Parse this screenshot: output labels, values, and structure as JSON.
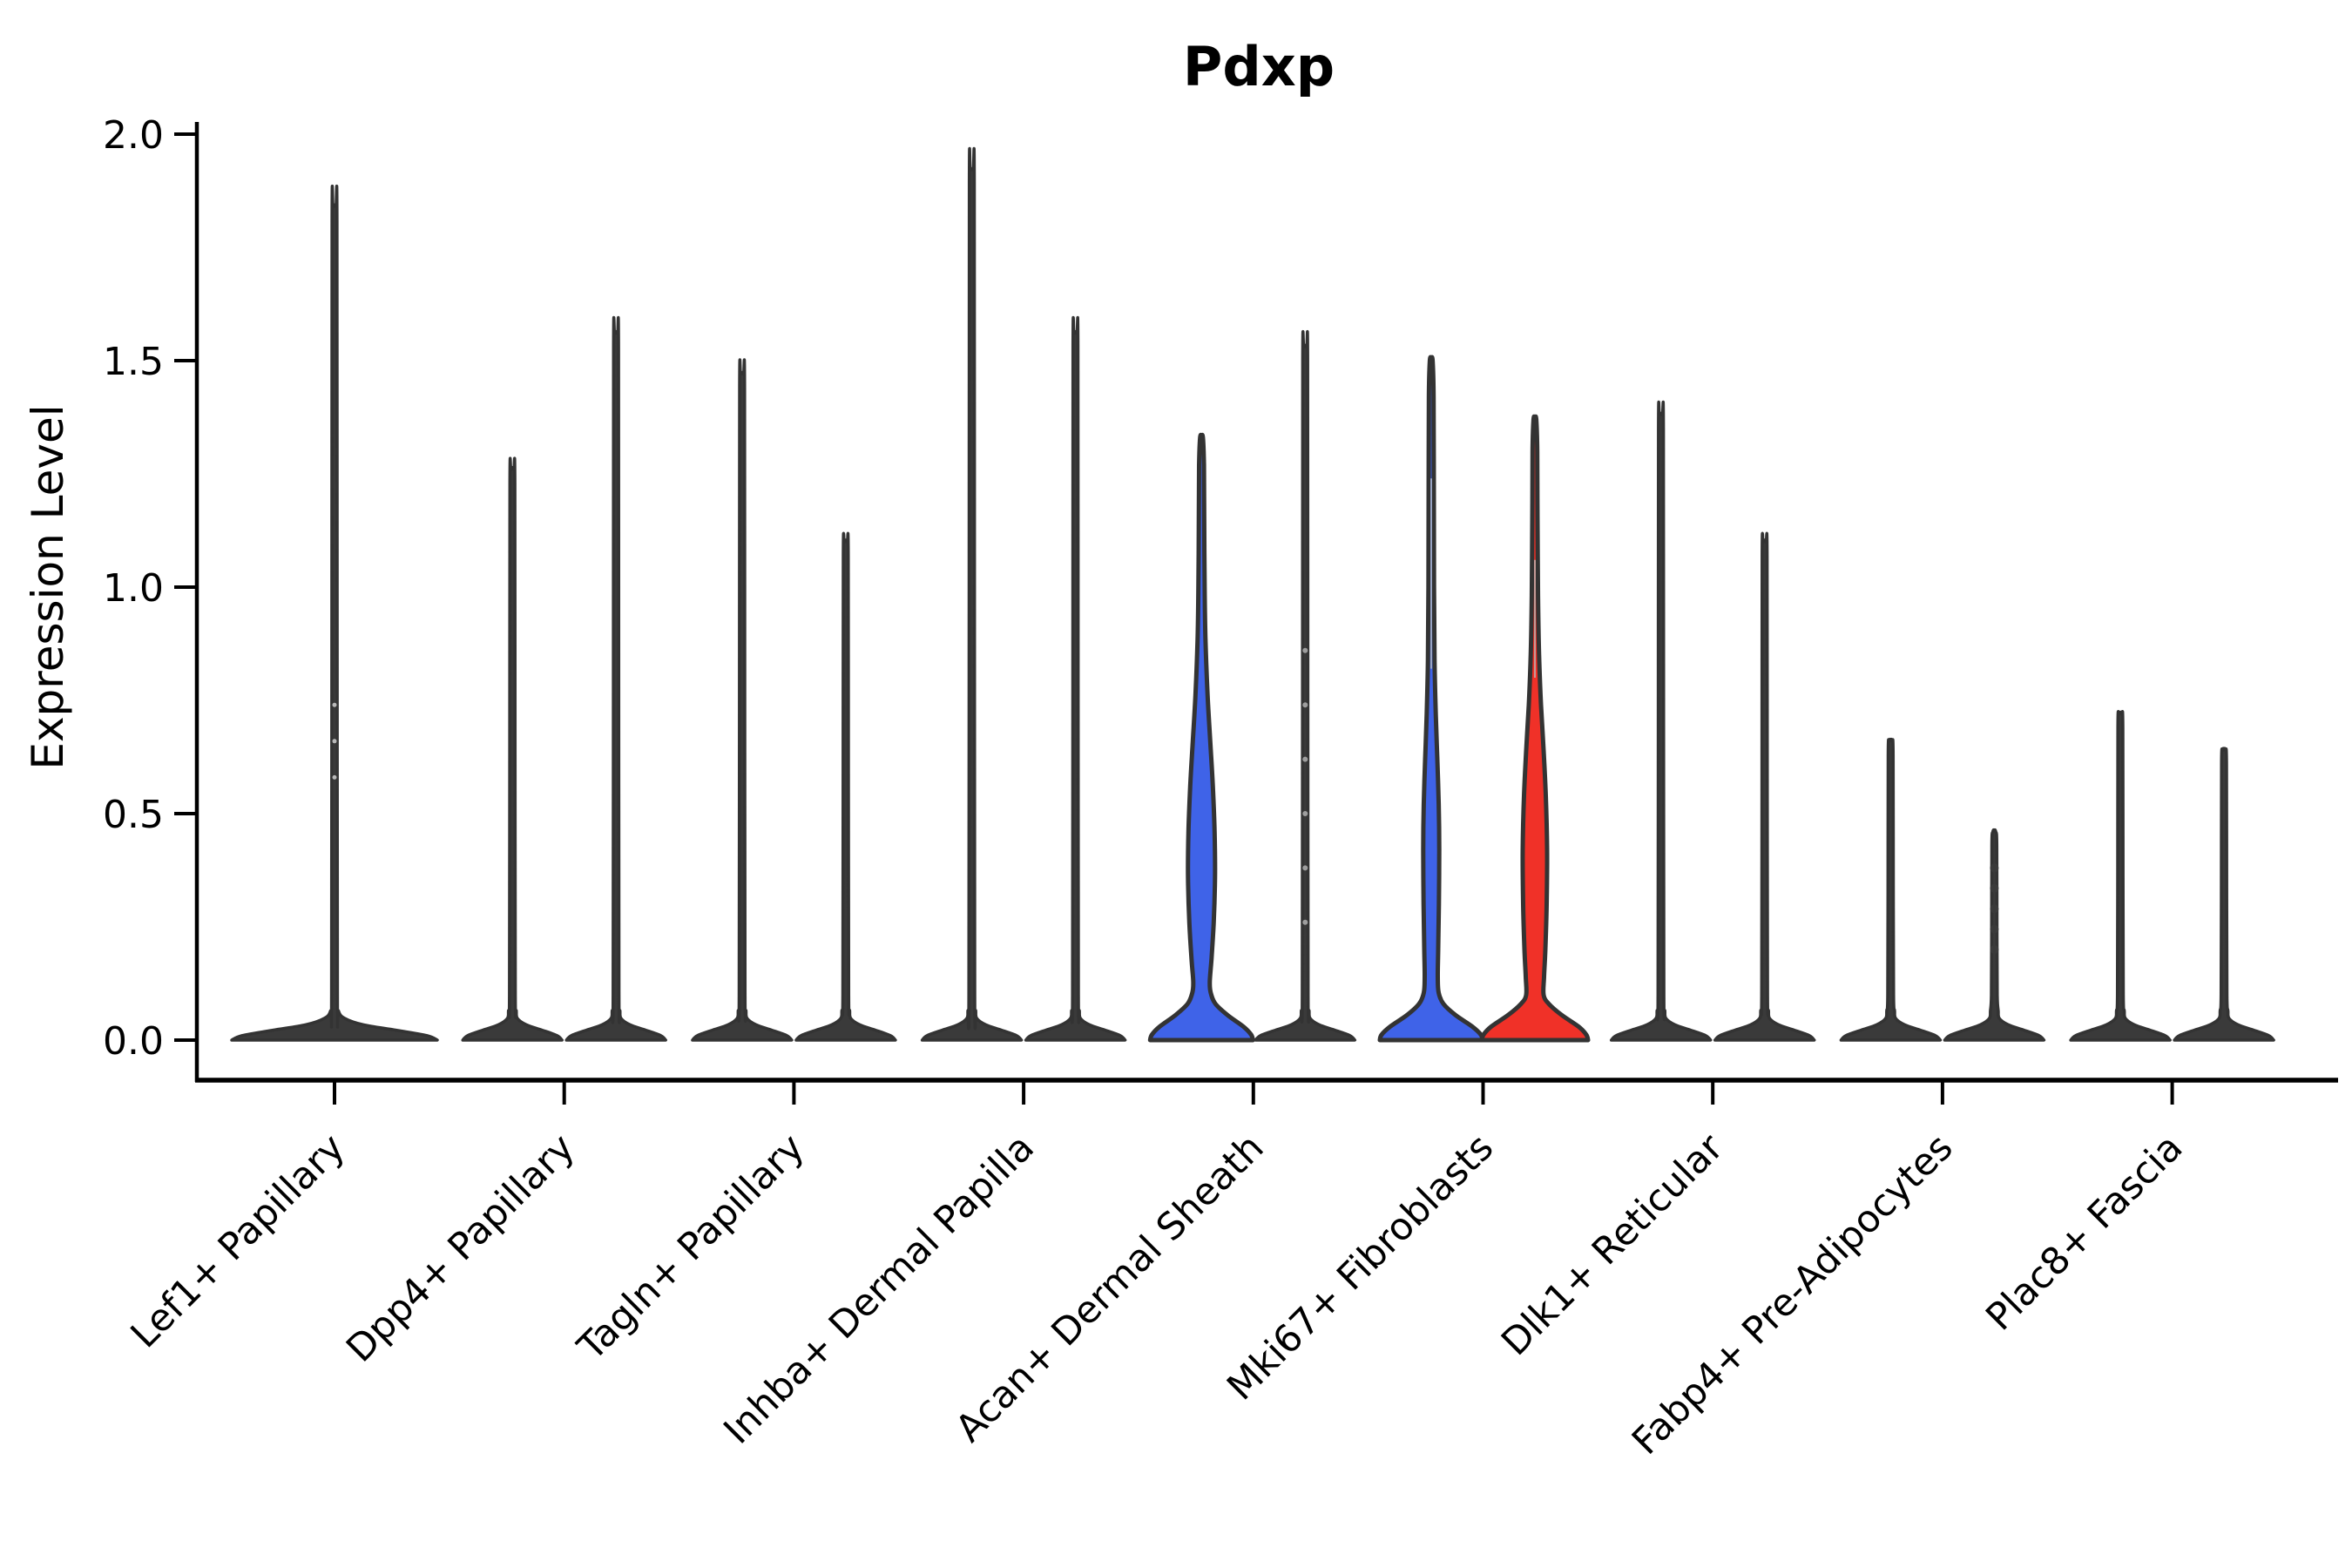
{
  "title": "Pdxp",
  "y_axis": {
    "label": "Expression Level",
    "tick_labels": [
      "2.0",
      "1.5",
      "1.0",
      "0.5",
      "0.0"
    ],
    "tick_values": [
      2.0,
      1.5,
      1.0,
      0.5,
      0.0
    ]
  },
  "colors": {
    "blue_fill": "#3F63E8",
    "red_fill": "#F03128",
    "dark_fill": "#3a3a3a",
    "outline": "#333333",
    "axis": "#000000",
    "background": "#ffffff"
  },
  "chart_data": {
    "type": "violin",
    "title": "Pdxp",
    "xlabel": "",
    "ylabel": "Expression Level",
    "ylim": [
      0,
      2.0
    ],
    "yticks": [
      0.0,
      0.5,
      1.0,
      1.5,
      2.0
    ],
    "grid": false,
    "legend": "none",
    "categories": [
      "Lef1+ Papillary",
      "Dpp4+ Papillary",
      "Tagln+ Papillary",
      "Inhba+ Dermal Papilla",
      "Acan+ Dermal Sheath",
      "Mki67+ Fibroblasts",
      "Dlk1+ Reticular",
      "Fabp4+ Pre-Adipocytes",
      "Plac8+ Fascia"
    ],
    "groups": [
      {
        "category": "Lef1+ Papillary",
        "violins": [
          {
            "position": "center",
            "fill": "dark",
            "shape": "spike",
            "max_expression": 1.84,
            "base_half_width": 118,
            "marks": {
              "values": [
                0.74,
                0.66,
                0.58
              ],
              "color": "#b8b8b8",
              "r": 2.5
            }
          }
        ]
      },
      {
        "category": "Dpp4+ Papillary",
        "violins": [
          {
            "position": "left",
            "fill": "dark",
            "shape": "spike",
            "max_expression": 1.26,
            "base_half_width": 57
          },
          {
            "position": "right",
            "fill": "dark",
            "shape": "spike",
            "max_expression": 1.56,
            "base_half_width": 57
          }
        ]
      },
      {
        "category": "Tagln+ Papillary",
        "violins": [
          {
            "position": "left",
            "fill": "dark",
            "shape": "spike",
            "max_expression": 1.47,
            "base_half_width": 57
          },
          {
            "position": "right",
            "fill": "dark",
            "shape": "spike",
            "max_expression": 1.1,
            "base_half_width": 57
          }
        ]
      },
      {
        "category": "Inhba+ Dermal Papilla",
        "violins": [
          {
            "position": "left",
            "fill": "dark",
            "shape": "spike",
            "max_expression": 1.92,
            "base_half_width": 57
          },
          {
            "position": "right",
            "fill": "dark",
            "shape": "spike",
            "max_expression": 1.56,
            "base_half_width": 57
          }
        ]
      },
      {
        "category": "Acan+ Dermal Sheath",
        "violins": [
          {
            "position": "left",
            "fill": "blue",
            "shape": "bulge",
            "max_expression": 1.33,
            "profile": [
              [
                0,
                59
              ],
              [
                0.012,
                57
              ],
              [
                0.03,
                48
              ],
              [
                0.055,
                30
              ],
              [
                0.08,
                16
              ],
              [
                0.105,
                10.5
              ],
              [
                0.13,
                9.5
              ],
              [
                0.18,
                11.5
              ],
              [
                0.26,
                14
              ],
              [
                0.36,
                15.5
              ],
              [
                0.46,
                15
              ],
              [
                0.56,
                13
              ],
              [
                0.66,
                10
              ],
              [
                0.76,
                7
              ],
              [
                0.88,
                4.6
              ],
              [
                1.0,
                3.6
              ],
              [
                1.15,
                3.1
              ],
              [
                1.27,
                2.8
              ],
              [
                1.33,
                1.6
              ]
            ]
          },
          {
            "position": "right",
            "fill": "dark",
            "shape": "spike",
            "max_expression": 1.53,
            "base_half_width": 57,
            "marks": {
              "values": [
                0.86,
                0.74,
                0.62,
                0.5,
                0.38,
                0.26
              ],
              "color": "#9e9e9e",
              "r": 3
            }
          }
        ]
      },
      {
        "category": "Mki67+ Fibroblasts",
        "violins": [
          {
            "position": "left",
            "fill": "blue",
            "shape": "bulge",
            "max_expression": 1.5,
            "profile": [
              [
                0,
                59
              ],
              [
                0.012,
                57
              ],
              [
                0.03,
                47
              ],
              [
                0.055,
                28
              ],
              [
                0.08,
                14
              ],
              [
                0.105,
                8.5
              ],
              [
                0.14,
                7.5
              ],
              [
                0.2,
                8
              ],
              [
                0.3,
                8.8
              ],
              [
                0.42,
                9.2
              ],
              [
                0.52,
                8.6
              ],
              [
                0.62,
                7
              ],
              [
                0.72,
                5.2
              ],
              [
                0.84,
                3.8
              ],
              [
                1.0,
                3.2
              ],
              [
                1.2,
                3.0
              ],
              [
                1.42,
                2.7
              ],
              [
                1.5,
                1.6
              ]
            ],
            "core_line": {
              "from": 0.82,
              "to": 1.24,
              "color": "#98a4c4",
              "width": 2
            }
          },
          {
            "position": "right",
            "fill": "red",
            "shape": "bulge",
            "max_expression": 1.37,
            "profile": [
              [
                0,
                61
              ],
              [
                0.012,
                59
              ],
              [
                0.03,
                50
              ],
              [
                0.055,
                31
              ],
              [
                0.08,
                16
              ],
              [
                0.1,
                10
              ],
              [
                0.14,
                10.5
              ],
              [
                0.2,
                12
              ],
              [
                0.3,
                13.5
              ],
              [
                0.42,
                14
              ],
              [
                0.54,
                12.5
              ],
              [
                0.64,
                10
              ],
              [
                0.74,
                7
              ],
              [
                0.85,
                4.8
              ],
              [
                0.98,
                3.6
              ],
              [
                1.15,
                3.0
              ],
              [
                1.3,
                2.7
              ],
              [
                1.37,
                1.6
              ]
            ],
            "core_line": {
              "from": 0.8,
              "to": 1.06,
              "color": "#c49a96",
              "width": 2
            }
          }
        ]
      },
      {
        "category": "Dlk1+ Reticular",
        "violins": [
          {
            "position": "left",
            "fill": "dark",
            "shape": "spike",
            "max_expression": 1.38,
            "base_half_width": 57
          },
          {
            "position": "right",
            "fill": "dark",
            "shape": "spike",
            "max_expression": 1.1,
            "base_half_width": 57
          }
        ]
      },
      {
        "category": "Fabp4+ Pre-Adipocytes",
        "violins": [
          {
            "position": "left",
            "fill": "dark",
            "shape": "spike",
            "max_expression": 0.66,
            "base_half_width": 57
          },
          {
            "position": "right",
            "fill": "dark",
            "shape": "spike",
            "max_expression": 0.46,
            "base_half_width": 57,
            "marks": {
              "values": [
                0.38,
                0.335,
                0.29,
                0.245,
                0.2
              ],
              "color": "#3a3a3a",
              "r": 5
            }
          }
        ]
      },
      {
        "category": "Plac8+ Fascia",
        "violins": [
          {
            "position": "left",
            "fill": "dark",
            "shape": "spike",
            "max_expression": 0.72,
            "base_half_width": 57
          },
          {
            "position": "right",
            "fill": "dark",
            "shape": "spike",
            "max_expression": 0.64,
            "base_half_width": 57
          }
        ]
      }
    ]
  }
}
